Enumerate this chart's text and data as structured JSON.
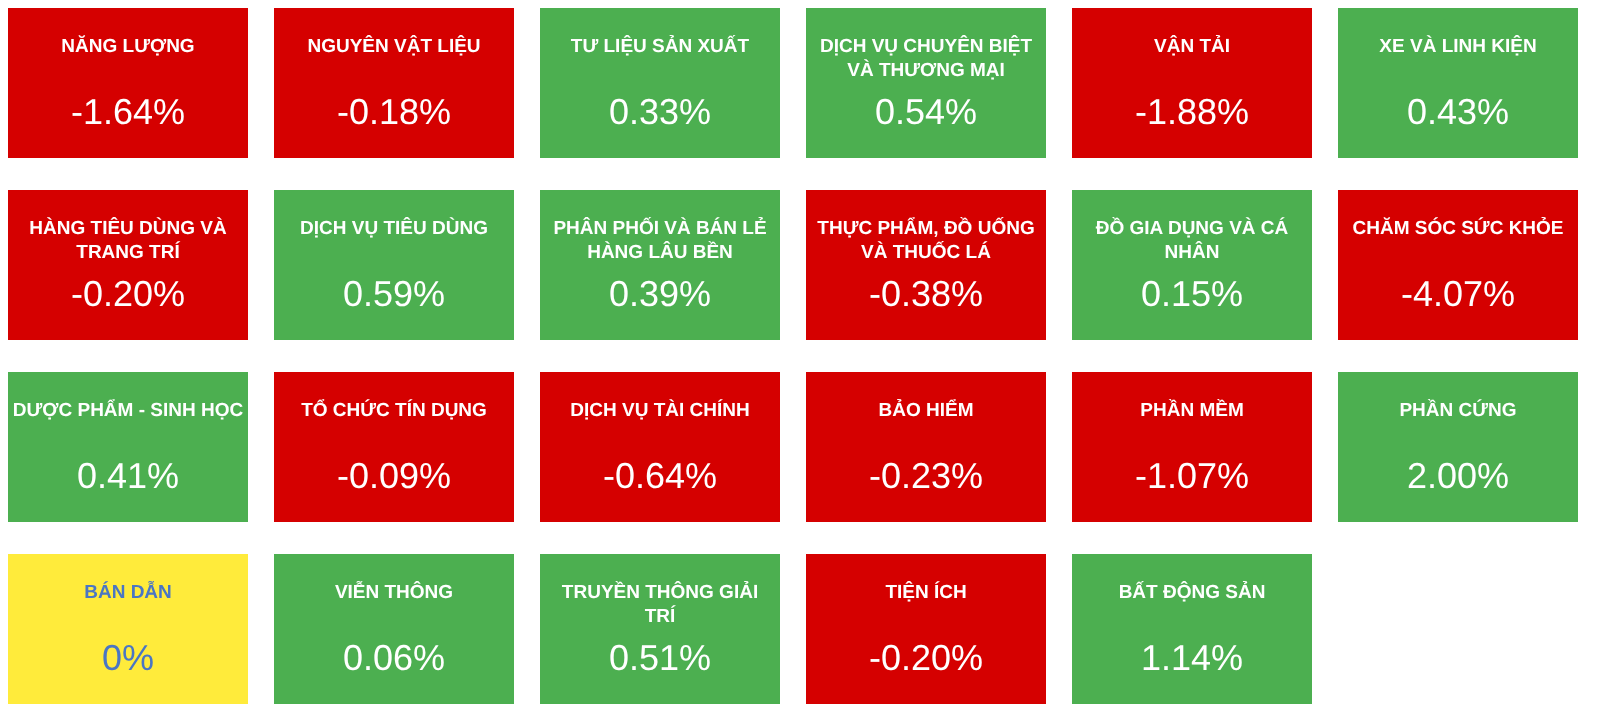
{
  "chart_data": {
    "type": "other",
    "categories": [
      "NĂNG LƯỢNG",
      "NGUYÊN VẬT LIỆU",
      "TƯ LIỆU SẢN XUẤT",
      "DỊCH VỤ CHUYÊN BIỆT VÀ THƯƠNG MẠI",
      "VẬN TẢI",
      "XE VÀ LINH KIỆN",
      "HÀNG TIÊU DÙNG VÀ TRANG TRÍ",
      "DỊCH VỤ TIÊU DÙNG",
      "PHÂN PHỐI VÀ BÁN LẺ HÀNG LÂU BỀN",
      "THỰC PHẨM, ĐỒ UỐNG VÀ THUỐC LÁ",
      "ĐỒ GIA DỤNG VÀ CÁ NHÂN",
      "CHĂM SÓC SỨC KHỎE",
      "DƯỢC PHẨM - SINH HỌC",
      "TỔ CHỨC TÍN DỤNG",
      "DỊCH VỤ TÀI CHÍNH",
      "BẢO HIỂM",
      "PHẦN MỀM",
      "PHẦN CỨNG",
      "BÁN DẪN",
      "VIỄN THÔNG",
      "TRUYỀN THÔNG GIẢI TRÍ",
      "TIỆN ÍCH",
      "BẤT ĐỘNG SẢN"
    ],
    "values": [
      -1.64,
      -0.18,
      0.33,
      0.54,
      -1.88,
      0.43,
      -0.2,
      0.59,
      0.39,
      -0.38,
      0.15,
      -4.07,
      0.41,
      -0.09,
      -0.64,
      -0.23,
      -1.07,
      2.0,
      0,
      0.06,
      0.51,
      -0.2,
      1.14
    ],
    "value_labels": [
      "-1.64%",
      "-0.18%",
      "0.33%",
      "0.54%",
      "-1.88%",
      "0.43%",
      "-0.20%",
      "0.59%",
      "0.39%",
      "-0.38%",
      "0.15%",
      "-4.07%",
      "0.41%",
      "-0.09%",
      "-0.64%",
      "-0.23%",
      "-1.07%",
      "2.00%",
      "0%",
      "0.06%",
      "0.51%",
      "-0.20%",
      "1.14%"
    ],
    "colors": [
      "#d50000",
      "#d50000",
      "#4caf50",
      "#4caf50",
      "#d50000",
      "#4caf50",
      "#d50000",
      "#4caf50",
      "#4caf50",
      "#d50000",
      "#4caf50",
      "#d50000",
      "#4caf50",
      "#d50000",
      "#d50000",
      "#d50000",
      "#d50000",
      "#4caf50",
      "#ffeb3b",
      "#4caf50",
      "#4caf50",
      "#d50000",
      "#4caf50"
    ]
  }
}
